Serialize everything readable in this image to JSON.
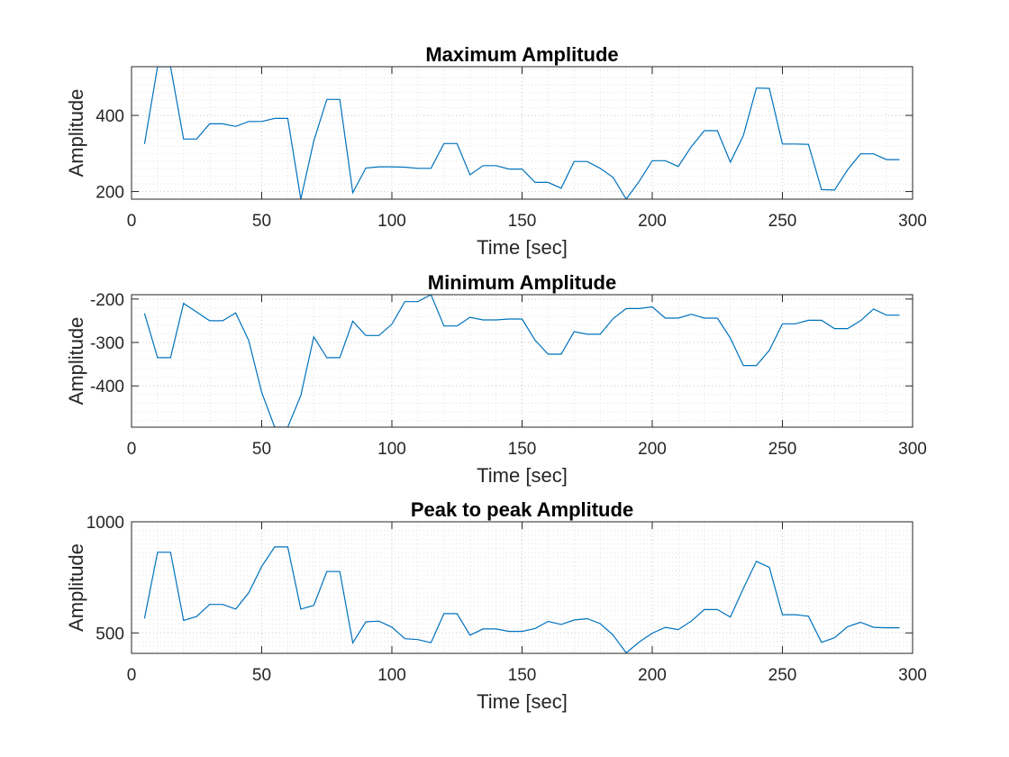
{
  "chart_data": [
    {
      "type": "line",
      "title": "Maximum Amplitude",
      "xlabel": "Time [sec]",
      "ylabel": "Amplitude",
      "xlim": [
        0,
        300
      ],
      "ylim": [
        180,
        528
      ],
      "xticks": [
        0,
        50,
        100,
        150,
        200,
        250,
        300
      ],
      "yticks": [
        200,
        400
      ],
      "grid": true,
      "minor_grid": true,
      "series_color": "#0072BD",
      "x": [
        5,
        10,
        15,
        20,
        25,
        30,
        35,
        40,
        45,
        50,
        55,
        60,
        65,
        70,
        75,
        80,
        85,
        90,
        95,
        100,
        105,
        110,
        115,
        120,
        125,
        130,
        135,
        140,
        145,
        150,
        155,
        160,
        165,
        170,
        175,
        180,
        185,
        190,
        195,
        200,
        205,
        210,
        215,
        220,
        225,
        230,
        235,
        240,
        245,
        250,
        255,
        260,
        265,
        270,
        275,
        280,
        285,
        290,
        295
      ],
      "values": [
        325,
        528,
        528,
        338,
        338,
        378,
        378,
        371,
        384,
        384,
        392,
        392,
        180,
        333,
        442,
        442,
        197,
        262,
        265,
        265,
        264,
        261,
        261,
        326,
        326,
        244,
        268,
        268,
        259,
        259,
        224,
        224,
        209,
        279,
        279,
        261,
        237,
        180,
        227,
        281,
        281,
        266,
        318,
        360,
        360,
        277,
        347,
        472,
        471,
        325,
        325,
        324,
        205,
        204,
        257,
        299,
        299,
        284,
        284
      ]
    },
    {
      "type": "line",
      "title": "Minimum Amplitude",
      "xlabel": "Time [sec]",
      "ylabel": "Amplitude",
      "xlim": [
        0,
        300
      ],
      "ylim": [
        -495,
        -190
      ],
      "xticks": [
        0,
        50,
        100,
        150,
        200,
        250,
        300
      ],
      "yticks": [
        -200,
        -300,
        -400
      ],
      "grid": true,
      "minor_grid": true,
      "series_color": "#0072BD",
      "x": [
        5,
        10,
        15,
        20,
        25,
        30,
        35,
        40,
        45,
        50,
        55,
        60,
        65,
        70,
        75,
        80,
        85,
        90,
        95,
        100,
        105,
        110,
        115,
        120,
        125,
        130,
        135,
        140,
        145,
        150,
        155,
        160,
        165,
        170,
        175,
        180,
        185,
        190,
        195,
        200,
        205,
        210,
        215,
        220,
        225,
        230,
        235,
        240,
        245,
        250,
        255,
        260,
        265,
        270,
        275,
        280,
        285,
        290,
        295
      ],
      "values": [
        -233,
        -335,
        -335,
        -210,
        -230,
        -250,
        -250,
        -232,
        -295,
        -415,
        -495,
        -495,
        -422,
        -287,
        -335,
        -335,
        -251,
        -284,
        -284,
        -258,
        -206,
        -206,
        -190,
        -262,
        -262,
        -242,
        -248,
        -248,
        -246,
        -246,
        -295,
        -327,
        -327,
        -275,
        -281,
        -281,
        -245,
        -222,
        -222,
        -218,
        -244,
        -244,
        -235,
        -244,
        -244,
        -290,
        -353,
        -353,
        -318,
        -257,
        -257,
        -249,
        -249,
        -268,
        -268,
        -250,
        -223,
        -237,
        -237
      ]
    },
    {
      "type": "line",
      "title": "Peak to peak Amplitude",
      "xlabel": "Time [sec]",
      "ylabel": "Amplitude",
      "xlim": [
        0,
        300
      ],
      "ylim": [
        408,
        1000
      ],
      "xticks": [
        0,
        50,
        100,
        150,
        200,
        250,
        300
      ],
      "yticks": [
        500,
        1000
      ],
      "grid": true,
      "minor_grid": true,
      "series_color": "#0072BD",
      "x": [
        5,
        10,
        15,
        20,
        25,
        30,
        35,
        40,
        45,
        50,
        55,
        60,
        65,
        70,
        75,
        80,
        85,
        90,
        95,
        100,
        105,
        110,
        115,
        120,
        125,
        130,
        135,
        140,
        145,
        150,
        155,
        160,
        165,
        170,
        175,
        180,
        185,
        190,
        195,
        200,
        205,
        210,
        215,
        220,
        225,
        230,
        235,
        240,
        245,
        250,
        255,
        260,
        265,
        270,
        275,
        280,
        285,
        290,
        295
      ],
      "values": [
        565,
        863,
        863,
        556,
        574,
        628,
        628,
        607,
        680,
        799,
        887,
        887,
        607,
        624,
        776,
        776,
        455,
        550,
        553,
        526,
        474,
        470,
        456,
        587,
        587,
        490,
        518,
        518,
        507,
        507,
        520,
        552,
        538,
        558,
        564,
        542,
        490,
        410,
        459,
        499,
        525,
        515,
        553,
        605,
        605,
        571,
        700,
        822,
        795,
        582,
        582,
        575,
        458,
        478,
        528,
        548,
        525,
        523,
        523
      ]
    }
  ]
}
